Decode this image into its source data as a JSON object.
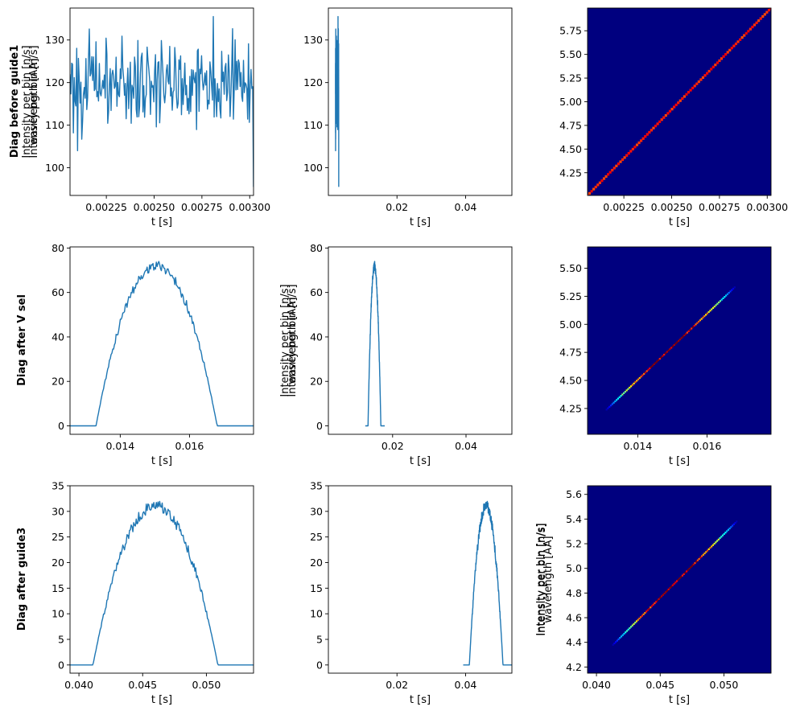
{
  "figure": {
    "rows": [
      {
        "label": "Diag before guide1"
      },
      {
        "label": "Diag after V sel"
      },
      {
        "label": "Diag after guide3"
      }
    ],
    "colors": {
      "line": "#1f77b4",
      "map_background": "#00007f"
    }
  },
  "chart_data": [
    {
      "id": "p00",
      "type": "line",
      "row": 0,
      "col": 0,
      "xlabel": "t [s]",
      "ylabel": "Intensity per bin [n/s]",
      "xlim": [
        0.00206,
        0.00302
      ],
      "ylim": [
        93.5,
        137.5
      ],
      "xticks": [
        0.00225,
        0.0025,
        0.00275,
        0.003
      ],
      "xtick_labels": [
        "0.00225",
        "0.00250",
        "0.00275",
        "0.00300"
      ],
      "yticks": [
        100,
        110,
        120,
        130
      ],
      "yticks_labels": [
        "100",
        "110",
        "120",
        "130"
      ],
      "trace": {
        "shape": "noise",
        "t_start": 0.00206,
        "t_end": 0.00302,
        "mean": 120,
        "spread": 8,
        "n": 220,
        "extremes": [
          [
            0.0021,
            104
          ],
          [
            0.00281,
            135.5
          ],
          [
            0.00302,
            95.5
          ]
        ]
      }
    },
    {
      "id": "p01",
      "type": "line",
      "row": 0,
      "col": 1,
      "xlabel": "t [s]",
      "ylabel": "Intensity per bin [n/s]",
      "xlim": [
        0.0,
        0.0535
      ],
      "ylim": [
        93.5,
        137.5
      ],
      "xticks": [
        0.02,
        0.04
      ],
      "xtick_labels": [
        "0.02",
        "0.04"
      ],
      "yticks": [
        100,
        110,
        120,
        130
      ],
      "yticks_labels": [
        "100",
        "110",
        "120",
        "130"
      ],
      "trace": {
        "shape": "noise",
        "t_start": 0.00206,
        "t_end": 0.00302,
        "mean": 120,
        "spread": 8,
        "n": 220,
        "extremes": [
          [
            0.0021,
            104
          ],
          [
            0.00281,
            135.5
          ],
          [
            0.00302,
            95.5
          ]
        ]
      }
    },
    {
      "id": "p02",
      "type": "heatmap",
      "row": 0,
      "col": 2,
      "xlabel": "t [s]",
      "ylabel": "wavelength [AA]",
      "xlim": [
        0.00206,
        0.00302
      ],
      "ylim": [
        4.01,
        5.99
      ],
      "xticks": [
        0.00225,
        0.0025,
        0.00275,
        0.003
      ],
      "xtick_labels": [
        "0.00225",
        "0.00250",
        "0.00275",
        "0.00300"
      ],
      "yticks": [
        4.25,
        4.5,
        4.75,
        5.0,
        5.25,
        5.5,
        5.75
      ],
      "yticks_labels": [
        "4.25",
        "4.50",
        "4.75",
        "5.00",
        "5.25",
        "5.50",
        "5.75"
      ],
      "band": {
        "t_start": 0.00206,
        "t_end": 0.00302,
        "w_start": 4.01,
        "w_end": 5.99,
        "profile": "flat",
        "peak": 0.9,
        "floor": 0.8
      }
    },
    {
      "id": "p10",
      "type": "line",
      "row": 1,
      "col": 0,
      "xlabel": "t [s]",
      "ylabel": "Intensity per bin [n/s]",
      "xlim": [
        0.01255,
        0.01785
      ],
      "ylim": [
        -3.8,
        80.5
      ],
      "xticks": [
        0.014,
        0.016
      ],
      "xtick_labels": [
        "0.014",
        "0.016"
      ],
      "yticks": [
        0,
        20,
        40,
        60,
        80
      ],
      "yticks_labels": [
        "0",
        "20",
        "40",
        "60",
        "80"
      ],
      "trace": {
        "shape": "peak",
        "t_start": 0.01255,
        "t_end": 0.01785,
        "center": 0.01505,
        "half_width": 0.00175,
        "amplitude": 72,
        "noise": 2.2,
        "n": 220
      }
    },
    {
      "id": "p11",
      "type": "line",
      "row": 1,
      "col": 1,
      "xlabel": "t [s]",
      "ylabel": "Intensity per bin [n/s]",
      "xlim": [
        0.0025,
        0.0525
      ],
      "ylim": [
        -3.8,
        80.5
      ],
      "xticks": [
        0.02,
        0.04
      ],
      "xtick_labels": [
        "0.02",
        "0.04"
      ],
      "yticks": [
        0,
        20,
        40,
        60,
        80
      ],
      "yticks_labels": [
        "0",
        "20",
        "40",
        "60",
        "80"
      ],
      "trace": {
        "shape": "peak",
        "t_start": 0.01255,
        "t_end": 0.01785,
        "center": 0.01505,
        "half_width": 0.00175,
        "amplitude": 72,
        "noise": 2.2,
        "n": 220
      }
    },
    {
      "id": "p12",
      "type": "heatmap",
      "row": 1,
      "col": 2,
      "xlabel": "t [s]",
      "ylabel": "wavelength [AA]",
      "xlim": [
        0.01255,
        0.01785
      ],
      "ylim": [
        4.02,
        5.69
      ],
      "xticks": [
        0.014,
        0.016
      ],
      "xtick_labels": [
        "0.014",
        "0.016"
      ],
      "yticks": [
        4.25,
        4.5,
        4.75,
        5.0,
        5.25,
        5.5
      ],
      "yticks_labels": [
        "4.25",
        "4.50",
        "4.75",
        "5.00",
        "5.25",
        "5.50"
      ],
      "band": {
        "t_start": 0.0131,
        "t_end": 0.0168,
        "w_start": 4.24,
        "w_end": 5.33,
        "profile": "peak",
        "peak": 1.0,
        "floor": 0.05
      }
    },
    {
      "id": "p20",
      "type": "line",
      "row": 2,
      "col": 0,
      "xlabel": "t [s]",
      "ylabel": "Intensity per bin [n/s]",
      "xlim": [
        0.0393,
        0.0537
      ],
      "ylim": [
        -1.6,
        35.0
      ],
      "xticks": [
        0.04,
        0.045,
        0.05
      ],
      "xtick_labels": [
        "0.040",
        "0.045",
        "0.050"
      ],
      "yticks": [
        0,
        5,
        10,
        15,
        20,
        25,
        30,
        35
      ],
      "yticks_labels": [
        "0",
        "5",
        "10",
        "15",
        "20",
        "25",
        "30",
        "35"
      ],
      "trace": {
        "shape": "peak",
        "t_start": 0.0393,
        "t_end": 0.0537,
        "center": 0.046,
        "half_width": 0.0049,
        "amplitude": 31,
        "noise": 1.1,
        "n": 220
      }
    },
    {
      "id": "p21",
      "type": "line",
      "row": 2,
      "col": 1,
      "xlabel": "t [s]",
      "ylabel": "Intensity per bin [n/s]",
      "xlim": [
        0.0,
        0.0535
      ],
      "ylim": [
        -1.6,
        35.0
      ],
      "xticks": [
        0.02,
        0.04
      ],
      "xtick_labels": [
        "0.02",
        "0.04"
      ],
      "yticks": [
        0,
        5,
        10,
        15,
        20,
        25,
        30,
        35
      ],
      "yticks_labels": [
        "0",
        "5",
        "10",
        "15",
        "20",
        "25",
        "30",
        "35"
      ],
      "trace": {
        "shape": "peak",
        "t_start": 0.0393,
        "t_end": 0.0537,
        "center": 0.046,
        "half_width": 0.0049,
        "amplitude": 31,
        "noise": 1.1,
        "n": 220
      }
    },
    {
      "id": "p22",
      "type": "heatmap",
      "row": 2,
      "col": 2,
      "xlabel": "t [s]",
      "ylabel": "wavelength [AA]",
      "xlim": [
        0.0393,
        0.0537
      ],
      "ylim": [
        4.15,
        5.67
      ],
      "xticks": [
        0.04,
        0.045,
        0.05
      ],
      "xtick_labels": [
        "0.040",
        "0.045",
        "0.050"
      ],
      "yticks": [
        4.2,
        4.4,
        4.6,
        4.8,
        5.0,
        5.2,
        5.4,
        5.6
      ],
      "yticks_labels": [
        "4.2",
        "4.4",
        "4.6",
        "4.8",
        "5.0",
        "5.2",
        "5.4",
        "5.6"
      ],
      "band": {
        "t_start": 0.0413,
        "t_end": 0.051,
        "w_start": 4.38,
        "w_end": 5.38,
        "profile": "peak",
        "peak": 1.0,
        "floor": 0.05
      }
    }
  ]
}
